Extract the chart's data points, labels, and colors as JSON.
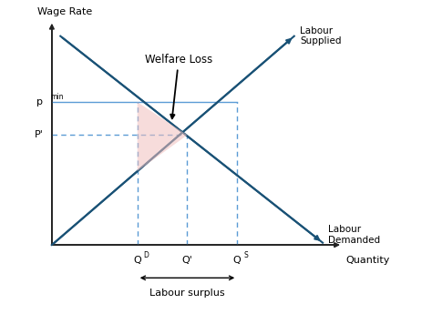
{
  "xlabel": "Quantity",
  "ylabel": "Wage Rate",
  "label_labour_supplied": "Labour\nSupplied",
  "label_labour_demanded": "Labour\nDemanded",
  "label_welfare_loss": "Welfare Loss",
  "label_labour_surplus": "Labour surplus",
  "label_pmin": "p",
  "label_pmin_super": "min",
  "label_pprime": "P'",
  "label_QD": "Q",
  "label_QD_super": "D",
  "label_Qprime": "Q'",
  "label_QS": "Q",
  "label_QS_super": "S",
  "line_color": "#1a5276",
  "dashed_color": "#5b9bd5",
  "welfare_fill_color": "#f2c0be",
  "welfare_fill_alpha": 0.55,
  "axis_color": "#222222",
  "x_lim": [
    0,
    10
  ],
  "y_lim": [
    0,
    10
  ],
  "QD": 3.0,
  "QS": 6.5,
  "Qprime": 4.75,
  "pmin": 6.5,
  "pprime": 5.0,
  "supply_x0": 0.0,
  "supply_y0": 0.0,
  "supply_x1": 8.5,
  "supply_y1": 9.5,
  "demand_x0": 0.3,
  "demand_y0": 9.5,
  "demand_x1": 9.5,
  "demand_y1": 0.1
}
